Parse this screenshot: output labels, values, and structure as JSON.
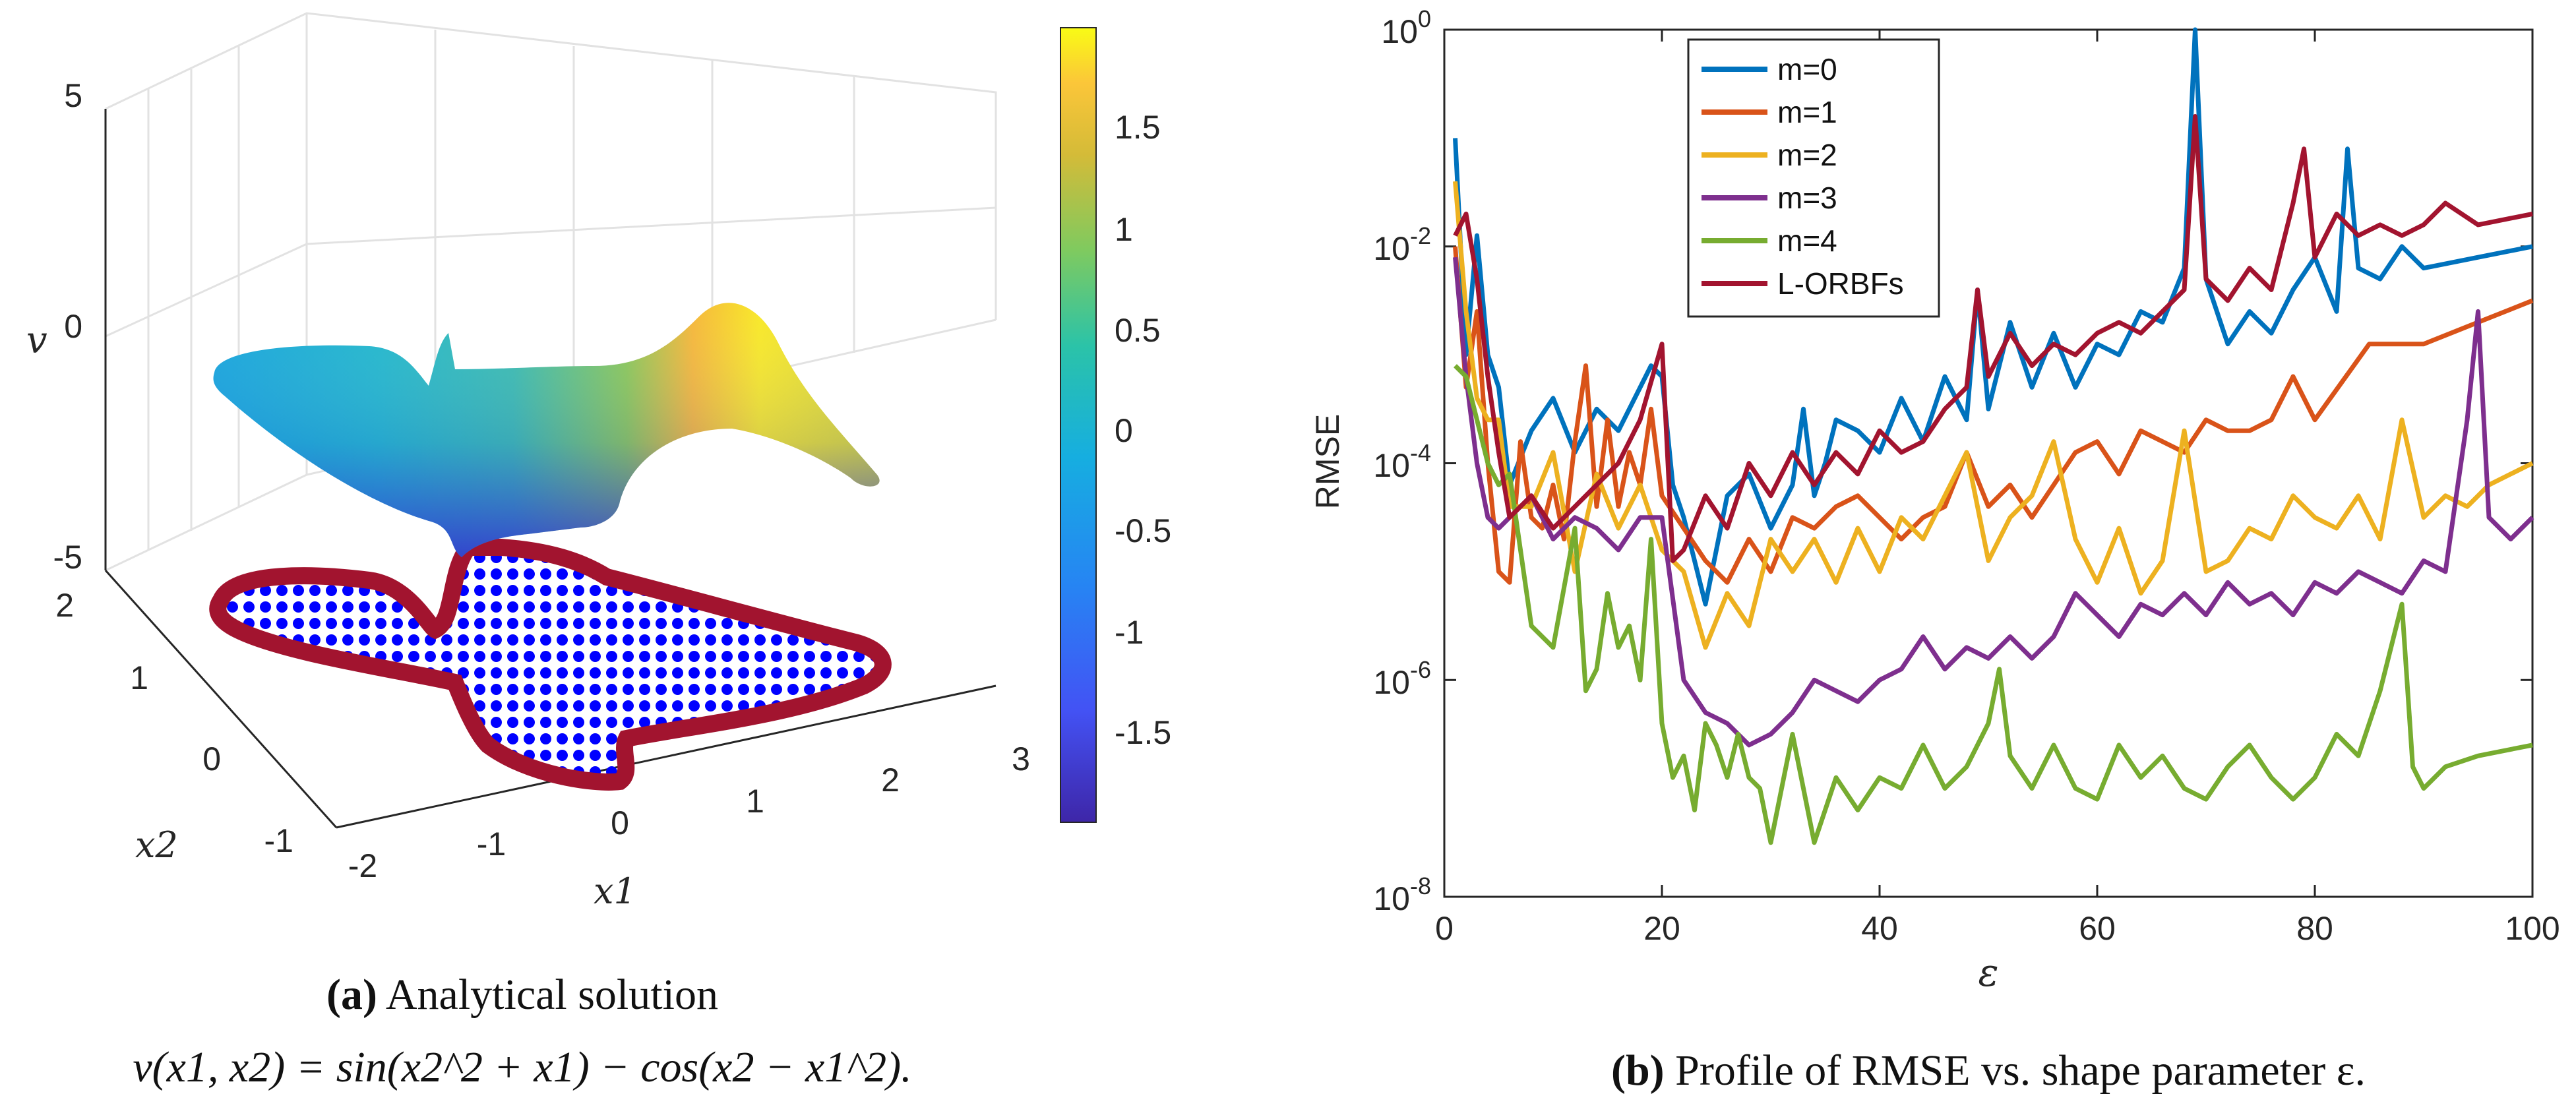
{
  "chart_data": [
    {
      "type": "surface3d",
      "panel": "a",
      "title": "Analytical solution",
      "formula": "v(x1, x2) = sin(x2^2 + x1) − cos(x2 − x1^2).",
      "xlabel": "x1",
      "ylabel": "x2",
      "zlabel": "v",
      "x_ticks": [
        "-2",
        "-1",
        "0",
        "1",
        "2",
        "3"
      ],
      "y_ticks": [
        "-1",
        "0",
        "1",
        "2"
      ],
      "z_ticks": [
        "-5",
        "0",
        "5"
      ],
      "xlim": [
        -2,
        3
      ],
      "ylim": [
        -1,
        2
      ],
      "zlim": [
        -5,
        5
      ],
      "colorbar": {
        "ticks": [
          "1.5",
          "1",
          "0.5",
          "0",
          "-0.5",
          "-1",
          "-1.5"
        ],
        "range": [
          -1.95,
          1.95
        ]
      },
      "colors": {
        "boundary": "#a2142f",
        "interior": "#0000ff"
      }
    },
    {
      "type": "line",
      "panel": "b",
      "title": "Profile of RMSE vs. shape parameter ε.",
      "xlabel": "ε",
      "ylabel": "RMSE",
      "yscale": "log",
      "xlim": [
        0,
        100
      ],
      "ylim_log10": [
        -8,
        0
      ],
      "x_ticks": [
        "0",
        "20",
        "40",
        "60",
        "80",
        "100"
      ],
      "y_ticks": [
        {
          "base": "10",
          "exp": "0"
        },
        {
          "base": "10",
          "exp": "-2"
        },
        {
          "base": "10",
          "exp": "-4"
        },
        {
          "base": "10",
          "exp": "-6"
        },
        {
          "base": "10",
          "exp": "-8"
        }
      ],
      "legend_position": "top-left",
      "series": [
        {
          "name": "m=0",
          "color": "#0072bd",
          "x": [
            1,
            2,
            3,
            4,
            5,
            6,
            8,
            10,
            12,
            14,
            16,
            18,
            19,
            20,
            21,
            22,
            24,
            26,
            28,
            30,
            32,
            33,
            34,
            35,
            36,
            38,
            40,
            42,
            44,
            46,
            48,
            49,
            50,
            52,
            54,
            56,
            58,
            60,
            62,
            64,
            66,
            68,
            69,
            70,
            72,
            74,
            76,
            78,
            80,
            82,
            83,
            84,
            86,
            88,
            90,
            95,
            100
          ],
          "y": [
            -1.0,
            -3.0,
            -1.9,
            -3.0,
            -3.3,
            -4.2,
            -3.7,
            -3.4,
            -3.9,
            -3.5,
            -3.7,
            -3.3,
            -3.1,
            -3.2,
            -4.2,
            -4.5,
            -5.3,
            -4.3,
            -4.1,
            -4.6,
            -4.2,
            -3.5,
            -4.3,
            -4.0,
            -3.6,
            -3.7,
            -3.9,
            -3.4,
            -3.8,
            -3.2,
            -3.6,
            -2.4,
            -3.5,
            -2.7,
            -3.3,
            -2.8,
            -3.3,
            -2.9,
            -3.0,
            -2.6,
            -2.7,
            -2.2,
            0.0,
            -2.3,
            -2.9,
            -2.6,
            -2.8,
            -2.4,
            -2.1,
            -2.6,
            -1.1,
            -2.2,
            -2.3,
            -2.0,
            -2.2,
            -2.1,
            -2.0
          ]
        },
        {
          "name": "m=1",
          "color": "#d95319",
          "x": [
            1,
            2,
            3,
            4,
            5,
            6,
            7,
            8,
            9,
            10,
            11,
            12,
            13,
            14,
            15,
            16,
            17,
            18,
            19,
            20,
            22,
            24,
            26,
            28,
            30,
            32,
            34,
            36,
            38,
            40,
            42,
            44,
            46,
            48,
            50,
            52,
            54,
            56,
            58,
            60,
            62,
            64,
            66,
            68,
            70,
            72,
            74,
            76,
            78,
            80,
            85,
            90,
            95,
            100
          ],
          "y": [
            -2.0,
            -3.3,
            -2.6,
            -4.0,
            -5.0,
            -5.1,
            -3.8,
            -4.5,
            -4.6,
            -4.2,
            -4.7,
            -3.8,
            -3.1,
            -4.4,
            -3.6,
            -4.4,
            -3.9,
            -4.2,
            -3.5,
            -4.3,
            -4.6,
            -4.9,
            -5.1,
            -4.7,
            -5.0,
            -4.5,
            -4.6,
            -4.4,
            -4.3,
            -4.5,
            -4.7,
            -4.5,
            -4.4,
            -3.9,
            -4.4,
            -4.2,
            -4.5,
            -4.2,
            -3.9,
            -3.8,
            -4.1,
            -3.7,
            -3.8,
            -3.9,
            -3.6,
            -3.7,
            -3.7,
            -3.6,
            -3.2,
            -3.6,
            -2.9,
            -2.9,
            -2.7,
            -2.5
          ]
        },
        {
          "name": "m=2",
          "color": "#edb120",
          "x": [
            1,
            2,
            3,
            4,
            5,
            6,
            8,
            10,
            12,
            14,
            16,
            18,
            20,
            22,
            24,
            26,
            28,
            30,
            32,
            34,
            36,
            38,
            40,
            42,
            44,
            46,
            48,
            50,
            52,
            54,
            56,
            58,
            60,
            62,
            64,
            66,
            68,
            70,
            72,
            74,
            76,
            78,
            80,
            82,
            84,
            86,
            88,
            90,
            92,
            94,
            96,
            98,
            100
          ],
          "y": [
            -1.4,
            -2.6,
            -3.4,
            -3.6,
            -3.6,
            -4.4,
            -4.4,
            -3.9,
            -5.0,
            -4.1,
            -4.6,
            -4.2,
            -4.8,
            -5.0,
            -5.7,
            -5.2,
            -5.5,
            -4.7,
            -5.0,
            -4.7,
            -5.1,
            -4.6,
            -5.0,
            -4.5,
            -4.7,
            -4.3,
            -3.9,
            -4.9,
            -4.5,
            -4.3,
            -3.8,
            -4.7,
            -5.1,
            -4.6,
            -5.2,
            -4.9,
            -3.7,
            -5.0,
            -4.9,
            -4.6,
            -4.7,
            -4.3,
            -4.5,
            -4.6,
            -4.3,
            -4.7,
            -3.6,
            -4.5,
            -4.3,
            -4.4,
            -4.2,
            -4.1,
            -4.0
          ]
        },
        {
          "name": "m=3",
          "color": "#7e2f8e",
          "x": [
            1,
            2,
            3,
            4,
            5,
            6,
            8,
            10,
            12,
            14,
            16,
            18,
            20,
            22,
            24,
            26,
            28,
            30,
            32,
            34,
            36,
            38,
            40,
            42,
            44,
            46,
            48,
            50,
            52,
            54,
            56,
            58,
            60,
            62,
            64,
            66,
            68,
            70,
            72,
            74,
            76,
            78,
            80,
            82,
            84,
            86,
            88,
            90,
            92,
            94,
            95,
            96,
            98,
            100
          ],
          "y": [
            -2.1,
            -3.2,
            -4.0,
            -4.5,
            -4.6,
            -4.5,
            -4.3,
            -4.7,
            -4.5,
            -4.6,
            -4.8,
            -4.5,
            -4.5,
            -6.0,
            -6.3,
            -6.4,
            -6.6,
            -6.5,
            -6.3,
            -6.0,
            -6.1,
            -6.2,
            -6.0,
            -5.9,
            -5.6,
            -5.9,
            -5.7,
            -5.8,
            -5.6,
            -5.8,
            -5.6,
            -5.2,
            -5.4,
            -5.6,
            -5.3,
            -5.4,
            -5.2,
            -5.4,
            -5.1,
            -5.3,
            -5.2,
            -5.4,
            -5.1,
            -5.2,
            -5.0,
            -5.1,
            -5.2,
            -4.9,
            -5.0,
            -3.6,
            -2.6,
            -4.5,
            -4.7,
            -4.5
          ]
        },
        {
          "name": "m=4",
          "color": "#77ac30",
          "x": [
            1,
            2,
            3,
            4,
            5,
            6,
            8,
            10,
            12,
            13,
            14,
            15,
            16,
            17,
            18,
            19,
            20,
            21,
            22,
            23,
            24,
            25,
            26,
            27,
            28,
            29,
            30,
            31,
            32,
            34,
            36,
            38,
            40,
            42,
            44,
            46,
            48,
            50,
            51,
            52,
            54,
            56,
            58,
            60,
            62,
            64,
            66,
            68,
            70,
            72,
            74,
            76,
            78,
            80,
            82,
            84,
            86,
            88,
            89,
            90,
            92,
            95,
            100
          ],
          "y": [
            -3.1,
            -3.2,
            -3.6,
            -4.0,
            -4.2,
            -4.1,
            -5.5,
            -5.7,
            -4.6,
            -6.1,
            -5.9,
            -5.2,
            -5.7,
            -5.5,
            -6.0,
            -4.7,
            -6.4,
            -6.9,
            -6.7,
            -7.2,
            -6.4,
            -6.6,
            -6.9,
            -6.5,
            -6.9,
            -7.0,
            -7.5,
            -7.0,
            -6.5,
            -7.5,
            -6.9,
            -7.2,
            -6.9,
            -7.0,
            -6.6,
            -7.0,
            -6.8,
            -6.4,
            -5.9,
            -6.7,
            -7.0,
            -6.6,
            -7.0,
            -7.1,
            -6.6,
            -6.9,
            -6.7,
            -7.0,
            -7.1,
            -6.8,
            -6.6,
            -6.9,
            -7.1,
            -6.9,
            -6.5,
            -6.7,
            -6.1,
            -5.3,
            -6.8,
            -7.0,
            -6.8,
            -6.7,
            -6.6
          ]
        },
        {
          "name": "L-ORBFs",
          "color": "#a2142f",
          "x": [
            1,
            2,
            3,
            4,
            5,
            6,
            8,
            10,
            12,
            14,
            16,
            18,
            20,
            21,
            22,
            24,
            26,
            28,
            30,
            32,
            34,
            36,
            38,
            40,
            42,
            44,
            46,
            48,
            49,
            50,
            52,
            54,
            56,
            58,
            60,
            62,
            64,
            66,
            68,
            69,
            70,
            72,
            74,
            76,
            78,
            79,
            80,
            82,
            84,
            86,
            88,
            90,
            92,
            95,
            100
          ],
          "y": [
            -1.9,
            -1.7,
            -2.3,
            -3.2,
            -3.9,
            -4.5,
            -4.3,
            -4.6,
            -4.4,
            -4.2,
            -4.0,
            -3.6,
            -2.9,
            -4.9,
            -4.8,
            -4.3,
            -4.6,
            -4.0,
            -4.3,
            -3.9,
            -4.2,
            -3.9,
            -4.1,
            -3.7,
            -3.9,
            -3.8,
            -3.5,
            -3.3,
            -2.4,
            -3.2,
            -2.8,
            -3.1,
            -2.9,
            -3.0,
            -2.8,
            -2.7,
            -2.8,
            -2.6,
            -2.4,
            -0.8,
            -2.3,
            -2.5,
            -2.2,
            -2.4,
            -1.6,
            -1.1,
            -2.1,
            -1.7,
            -1.9,
            -1.8,
            -1.9,
            -1.8,
            -1.6,
            -1.8,
            -1.7
          ]
        }
      ]
    }
  ]
}
